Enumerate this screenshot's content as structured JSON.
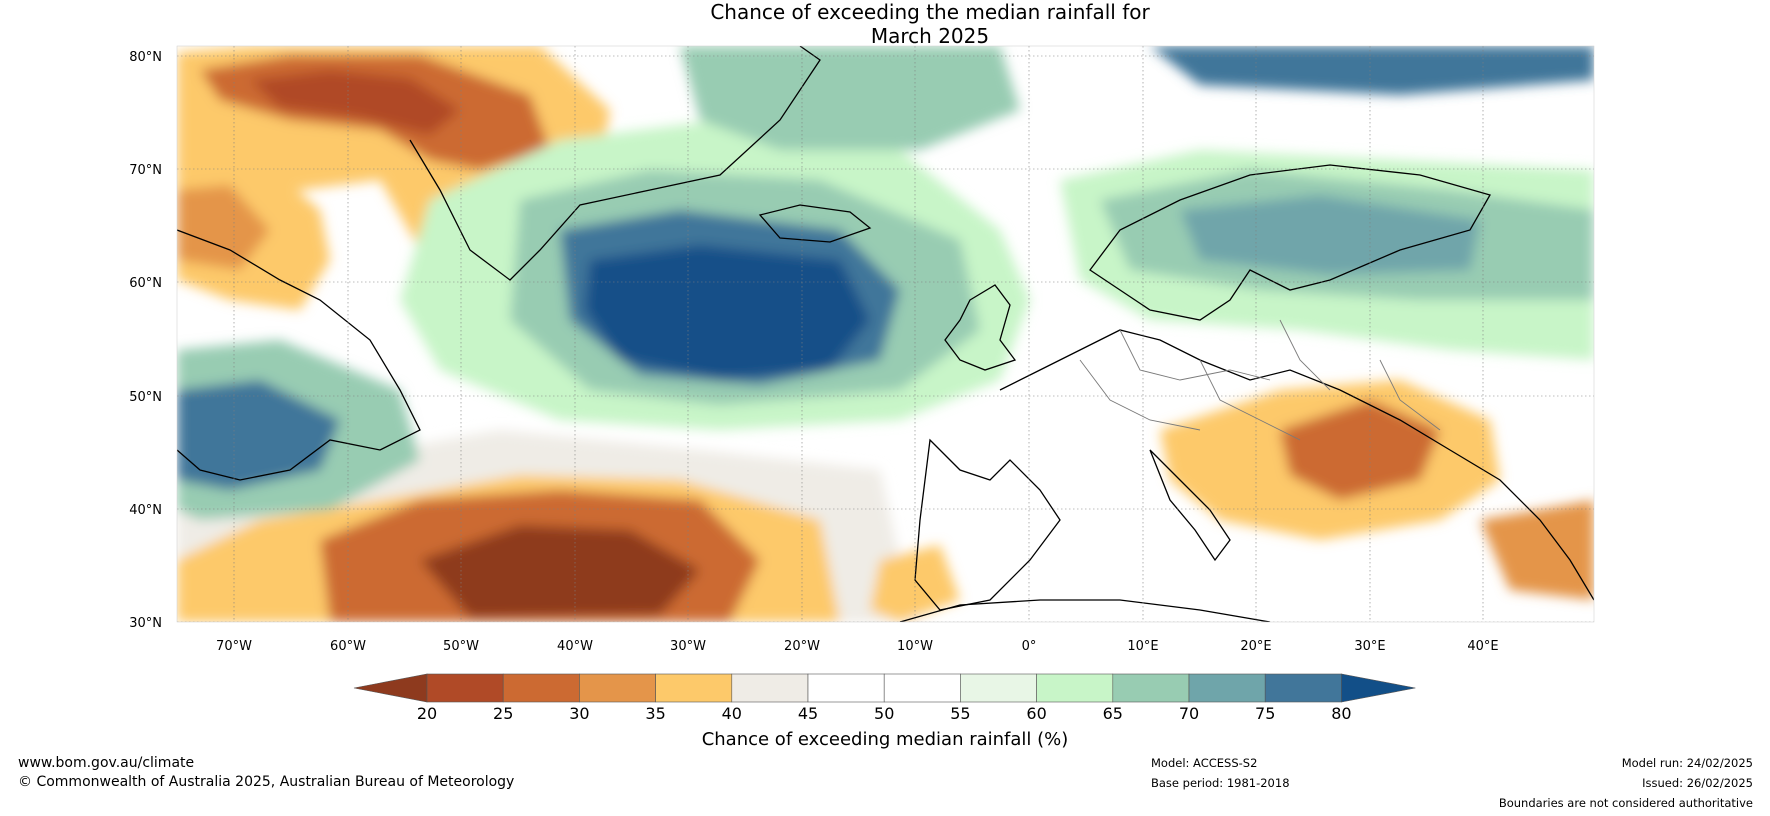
{
  "title": {
    "line1": "Chance of exceeding the median rainfall for",
    "line2": "March 2025"
  },
  "lat_labels": [
    "80°N",
    "70°N",
    "60°N",
    "50°N",
    "40°N",
    "30°N"
  ],
  "lon_labels": [
    "70°W",
    "60°W",
    "50°W",
    "40°W",
    "30°W",
    "20°W",
    "10°W",
    "0°",
    "10°E",
    "20°E",
    "30°E",
    "40°E"
  ],
  "colorbar": {
    "ticks": [
      "20",
      "25",
      "30",
      "35",
      "40",
      "45",
      "50",
      "55",
      "60",
      "65",
      "70",
      "75",
      "80"
    ],
    "title": "Chance of exceeding median rainfall (%)",
    "colors": [
      "#8e3a1e",
      "#b04a27",
      "#cc6a32",
      "#e4954a",
      "#fdc96a",
      "#efece6",
      "#ffffff",
      "#ffffff",
      "#e8f6e6",
      "#c8f5c8",
      "#98ccb2",
      "#6fa5aa",
      "#41769a",
      "#124f88"
    ]
  },
  "footer": {
    "website": "www.bom.gov.au/climate",
    "copyright": "© Commonwealth of Australia 2025, Australian Bureau of Meteorology",
    "model": "Model: ACCESS-S2",
    "base_period": "Base period: 1981-2018",
    "model_run": "Model run: 24/02/2025",
    "issued": "Issued: 26/02/2025",
    "disclaimer": "Boundaries are not considered authoritative"
  }
}
